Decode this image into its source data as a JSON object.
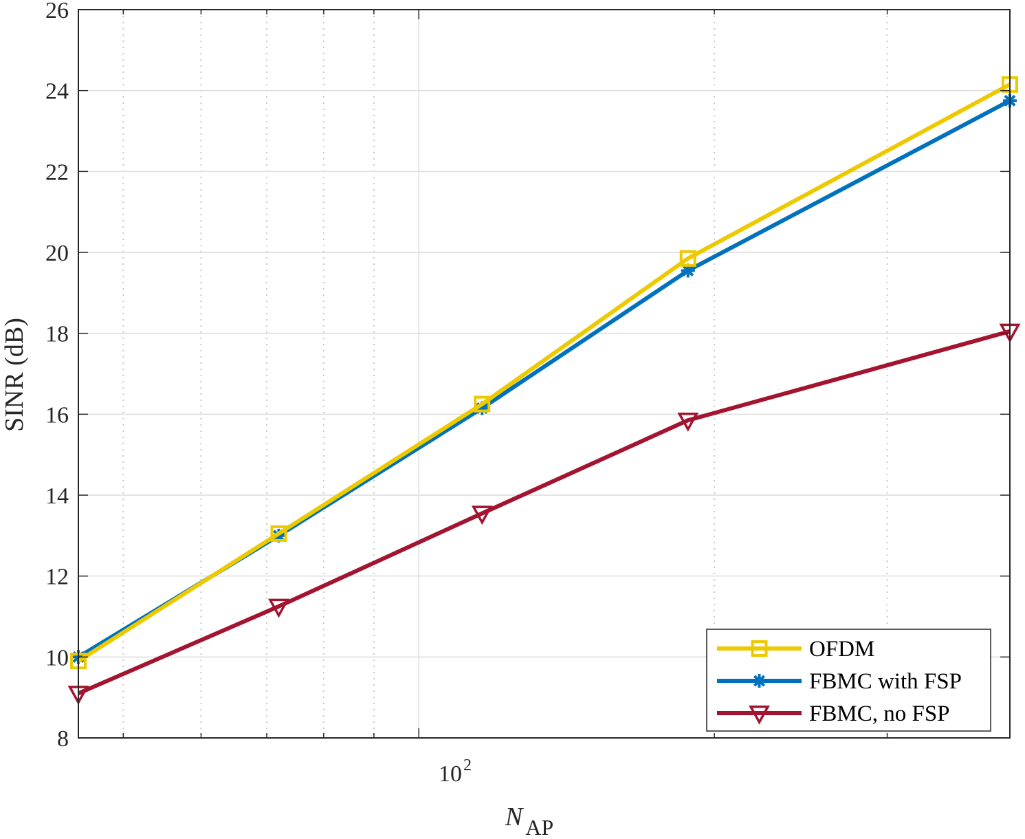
{
  "chart_data": {
    "type": "line",
    "xscale": "log",
    "xlim": [
      45,
      400
    ],
    "ylim": [
      8,
      26
    ],
    "yticks": [
      8,
      10,
      12,
      14,
      16,
      18,
      20,
      22,
      24,
      26
    ],
    "xtick_major": [
      100
    ],
    "xtick_major_base": "10",
    "xtick_major_exp": "2",
    "xtick_minor": [
      50,
      60,
      70,
      80,
      90,
      200,
      300,
      400
    ],
    "xlabel_main": "N",
    "xlabel_sub": "AP",
    "ylabel": "SINR (dB)",
    "grid": true,
    "legend_position": "bottom-right",
    "x": [
      45,
      72,
      116,
      188,
      400
    ],
    "series": [
      {
        "name": "OFDM",
        "color": "#EDC900",
        "marker": "square",
        "values": [
          9.9,
          13.05,
          16.25,
          19.85,
          24.15
        ]
      },
      {
        "name": "FBMC with FSP",
        "color": "#0072BD",
        "marker": "asterisk",
        "values": [
          10.0,
          13.0,
          16.15,
          19.55,
          23.75
        ]
      },
      {
        "name": "FBMC, no FSP",
        "color": "#A2142F",
        "marker": "triangle-down",
        "values": [
          9.1,
          11.25,
          13.55,
          15.85,
          18.05
        ]
      }
    ]
  }
}
